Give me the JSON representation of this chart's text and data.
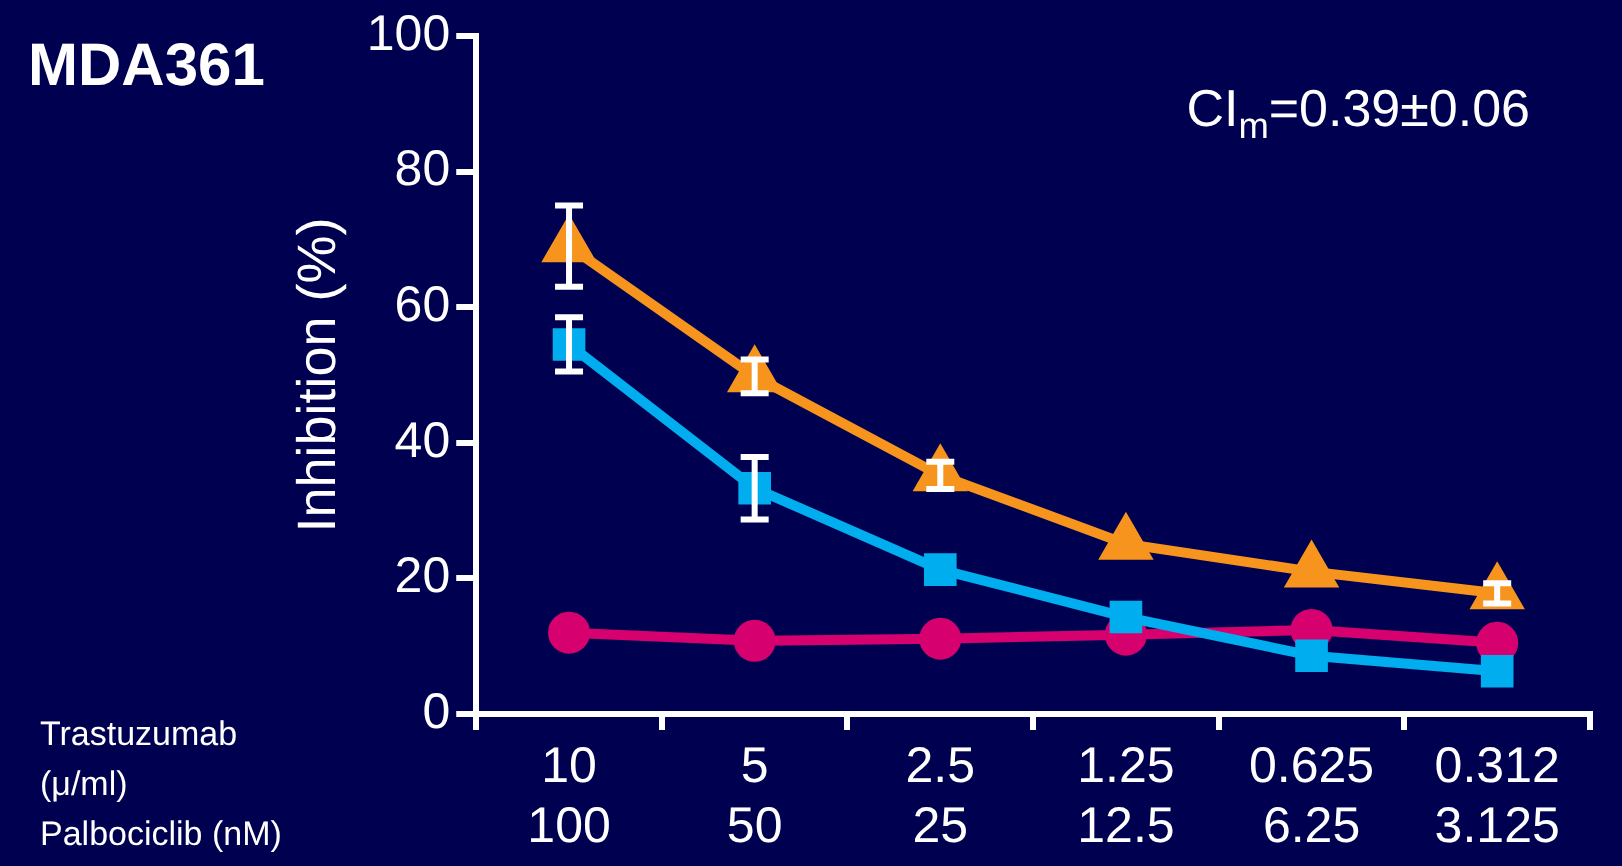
{
  "chart_data": {
    "type": "line",
    "title": "MDA361",
    "ylabel": "Inhibition (%)",
    "categories": [
      "10\n100",
      "5\n50",
      "2.5\n25",
      "1.25\n12.5",
      "0.625\n6.25",
      "0.312\n3.125"
    ],
    "annotations": [
      "CI$_{m}$=0.39±0.06",
      "Trastuzumab\n(μ/ml)\nPalbociclib (nM)"
    ],
    "series": [
      {
        "color": "#f7941d",
        "marker": "triangle",
        "values": [
          69,
          49.8,
          35.2,
          25.1,
          21,
          17.8
        ],
        "errors": [
          6,
          2.5,
          2,
          null,
          null,
          1.5
        ]
      },
      {
        "color": "#00aeef",
        "marker": "square",
        "values": [
          54.5,
          33.3,
          21.3,
          14.3,
          8.6,
          6.3
        ],
        "errors": [
          4,
          4.6,
          null,
          null,
          null,
          null
        ]
      },
      {
        "color": "#d6006f",
        "marker": "circle",
        "values": [
          12,
          10.8,
          11.1,
          11.7,
          12.4,
          10.5
        ]
      }
    ],
    "ylim": [
      0,
      100
    ],
    "yticks": [
      0,
      20,
      40,
      60,
      80,
      100
    ],
    "grid": false,
    "legend": false
  }
}
